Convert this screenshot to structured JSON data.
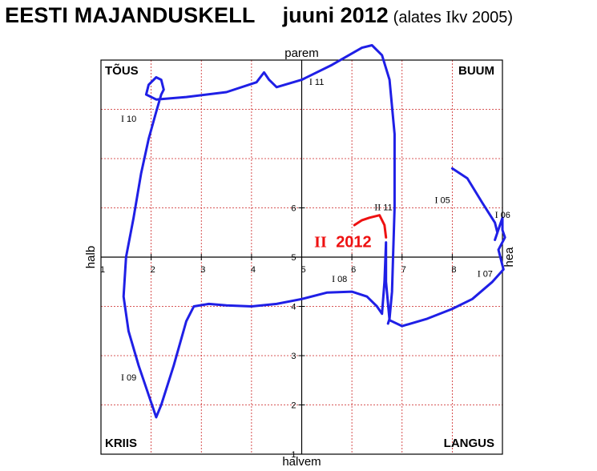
{
  "header": {
    "title": "EESTI MAJANDUSKELL",
    "date": "juuni 2012",
    "note_open": "(alates",
    "note_roman": "I",
    "note_close": "kv 2005)"
  },
  "chart_data": {
    "type": "line",
    "title": "EESTI MAJANDUSKELL",
    "subtitle": "juuni 2012 (alates I kv 2005)",
    "axes": {
      "x_low_label": "halb",
      "x_high_label": "hea",
      "y_high_label": "parem",
      "y_low_label": "halvem",
      "xlim": [
        1,
        9
      ],
      "ylim": [
        1,
        9
      ],
      "x_ticks": [
        1,
        2,
        3,
        4,
        5,
        6,
        7,
        8
      ],
      "y_ticks": [
        1,
        2,
        3,
        4,
        5,
        6
      ],
      "center": [
        5,
        5
      ],
      "grid": true
    },
    "quadrants": {
      "top_left": "TÕUS",
      "top_right": "BUUM",
      "bottom_left": "KRIIS",
      "bottom_right": "LANGUS"
    },
    "series": [
      {
        "color": "#1f1fe6",
        "points": [
          [
            8.0,
            6.8
          ],
          [
            8.3,
            6.6
          ],
          [
            8.6,
            6.1
          ],
          [
            8.85,
            5.7
          ],
          [
            8.9,
            5.5
          ],
          [
            8.85,
            5.35
          ],
          [
            9.0,
            5.8
          ],
          [
            9.0,
            5.55
          ],
          [
            9.05,
            5.4
          ],
          [
            8.92,
            5.15
          ],
          [
            9.02,
            4.75
          ],
          [
            8.8,
            4.5
          ],
          [
            8.4,
            4.15
          ],
          [
            8.0,
            3.95
          ],
          [
            7.5,
            3.75
          ],
          [
            7.0,
            3.6
          ],
          [
            6.75,
            3.72
          ],
          [
            6.68,
            4.5
          ],
          [
            6.68,
            5.3
          ],
          [
            6.65,
            4.5
          ],
          [
            6.6,
            3.85
          ],
          [
            6.5,
            4.0
          ],
          [
            6.3,
            4.2
          ],
          [
            6.0,
            4.3
          ],
          [
            5.5,
            4.28
          ],
          [
            5.0,
            4.15
          ],
          [
            4.5,
            4.05
          ],
          [
            4.0,
            4.0
          ],
          [
            3.5,
            4.02
          ],
          [
            3.15,
            4.05
          ],
          [
            2.85,
            4.0
          ],
          [
            2.7,
            3.7
          ],
          [
            2.45,
            2.8
          ],
          [
            2.2,
            2.0
          ],
          [
            2.1,
            1.75
          ],
          [
            1.95,
            2.2
          ],
          [
            1.75,
            2.8
          ],
          [
            1.55,
            3.5
          ],
          [
            1.45,
            4.2
          ],
          [
            1.5,
            5.0
          ],
          [
            1.65,
            5.8
          ],
          [
            1.8,
            6.7
          ],
          [
            1.95,
            7.4
          ],
          [
            2.1,
            7.95
          ],
          [
            2.2,
            8.3
          ],
          [
            2.25,
            8.4
          ],
          [
            2.2,
            8.6
          ],
          [
            2.1,
            8.65
          ],
          [
            1.95,
            8.5
          ],
          [
            1.9,
            8.3
          ],
          [
            2.1,
            8.2
          ],
          [
            2.7,
            8.25
          ],
          [
            3.5,
            8.35
          ],
          [
            4.1,
            8.55
          ],
          [
            4.25,
            8.75
          ],
          [
            4.35,
            8.6
          ],
          [
            4.5,
            8.45
          ],
          [
            5.0,
            8.6
          ],
          [
            5.6,
            8.9
          ],
          [
            6.2,
            9.25
          ],
          [
            6.4,
            9.3
          ],
          [
            6.6,
            9.1
          ],
          [
            6.75,
            8.6
          ],
          [
            6.85,
            7.5
          ],
          [
            6.85,
            6.0
          ],
          [
            6.82,
            5.0
          ],
          [
            6.8,
            4.3
          ],
          [
            6.75,
            3.75
          ],
          [
            6.72,
            3.65
          ]
        ]
      },
      {
        "color": "#ee1111",
        "points": [
          [
            6.05,
            5.65
          ],
          [
            6.2,
            5.75
          ],
          [
            6.35,
            5.8
          ],
          [
            6.55,
            5.85
          ],
          [
            6.65,
            5.65
          ],
          [
            6.68,
            5.4
          ]
        ]
      }
    ],
    "point_labels": [
      {
        "roman": "I",
        "year": "05",
        "x": 7.65,
        "y": 6.1
      },
      {
        "roman": "I",
        "year": "06",
        "x": 8.85,
        "y": 5.8
      },
      {
        "roman": "I",
        "year": "07",
        "x": 8.5,
        "y": 4.6
      },
      {
        "roman": "I",
        "year": "08",
        "x": 5.6,
        "y": 4.5
      },
      {
        "roman": "I",
        "year": "09",
        "x": 1.4,
        "y": 2.5
      },
      {
        "roman": "I",
        "year": "10",
        "x": 1.4,
        "y": 7.75
      },
      {
        "roman": "I",
        "year": "11",
        "x": 5.15,
        "y": 8.5
      },
      {
        "roman": "II",
        "year": "11",
        "x": 6.45,
        "y": 5.95
      }
    ],
    "current_label": {
      "roman": "II",
      "year": "2012",
      "x": 5.25,
      "y": 5.2
    }
  }
}
